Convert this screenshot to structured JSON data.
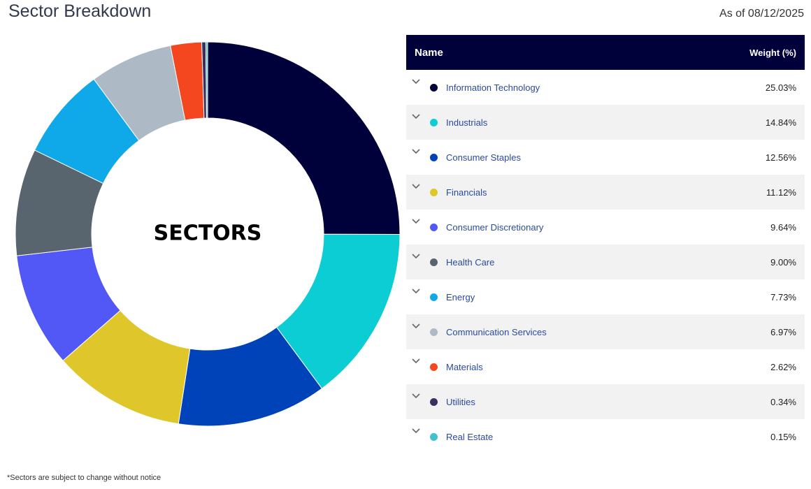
{
  "header": {
    "title": "Sector Breakdown",
    "as_of": "As of 08/12/2025"
  },
  "table": {
    "col_name": "Name",
    "col_weight": "Weight (%)"
  },
  "footnote": "*Sectors are subject to change without notice",
  "chart_data": {
    "type": "pie",
    "donut": true,
    "center_label": "SECTORS",
    "legend": "right-table",
    "series": [
      {
        "name": "Information Technology",
        "value": 25.03,
        "label": "25.03%",
        "color": "#00003a"
      },
      {
        "name": "Industrials",
        "value": 14.84,
        "label": "14.84%",
        "color": "#0ccdd4"
      },
      {
        "name": "Consumer Staples",
        "value": 12.56,
        "label": "12.56%",
        "color": "#0042b8"
      },
      {
        "name": "Financials",
        "value": 11.12,
        "label": "11.12%",
        "color": "#dfc72b"
      },
      {
        "name": "Consumer Discretionary",
        "value": 9.64,
        "label": "9.64%",
        "color": "#5158f6"
      },
      {
        "name": "Health Care",
        "value": 9.0,
        "label": "9.00%",
        "color": "#58646e"
      },
      {
        "name": "Energy",
        "value": 7.73,
        "label": "7.73%",
        "color": "#0fa8e8"
      },
      {
        "name": "Communication Services",
        "value": 6.97,
        "label": "6.97%",
        "color": "#adbac6"
      },
      {
        "name": "Materials",
        "value": 2.62,
        "label": "2.62%",
        "color": "#f4471f"
      },
      {
        "name": "Utilities",
        "value": 0.34,
        "label": "0.34%",
        "color": "#3a2f5e"
      },
      {
        "name": "Real Estate",
        "value": 0.15,
        "label": "0.15%",
        "color": "#3fc2cc"
      }
    ]
  }
}
